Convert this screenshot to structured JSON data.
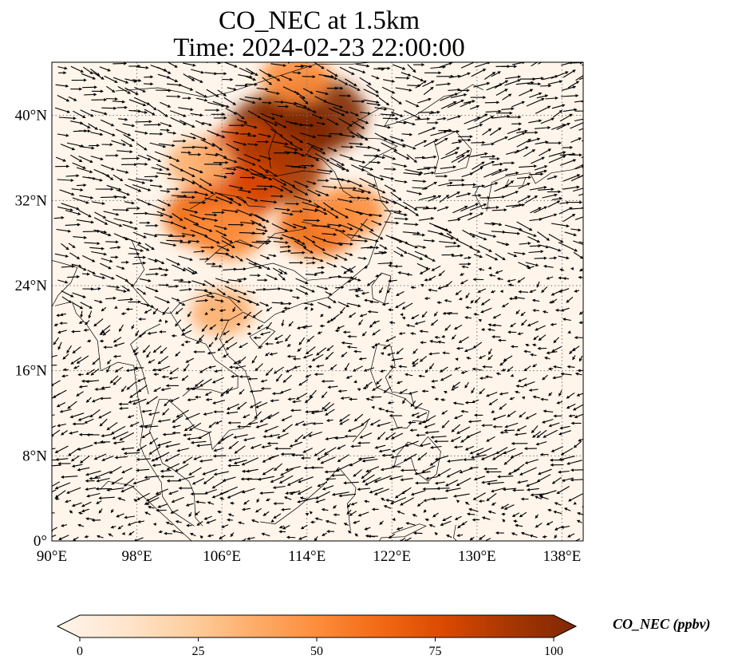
{
  "title": {
    "line1": "CO_NEC at 1.5km",
    "line2": "Time: 2024-02-23 22:00:00"
  },
  "map": {
    "lon_range": [
      90,
      140
    ],
    "lat_range": [
      0,
      45
    ],
    "lon_ticks": [
      {
        "value": 90,
        "label": "90°E"
      },
      {
        "value": 98,
        "label": "98°E"
      },
      {
        "value": 106,
        "label": "106°E"
      },
      {
        "value": 114,
        "label": "114°E"
      },
      {
        "value": 122,
        "label": "122°E"
      },
      {
        "value": 130,
        "label": "130°E"
      },
      {
        "value": 138,
        "label": "138°E"
      }
    ],
    "lat_ticks": [
      {
        "value": 0,
        "label": "0°"
      },
      {
        "value": 8,
        "label": "8°N"
      },
      {
        "value": 16,
        "label": "16°N"
      },
      {
        "value": 24,
        "label": "24°N"
      },
      {
        "value": 32,
        "label": "32°N"
      },
      {
        "value": 40,
        "label": "40°N"
      }
    ],
    "gridlines": true,
    "overlay": "wind-vectors"
  },
  "colorbar": {
    "label": "CO_NEC (ppbv)",
    "ticks": [
      {
        "value": 0,
        "label": "0"
      },
      {
        "value": 25,
        "label": "25"
      },
      {
        "value": 50,
        "label": "50"
      },
      {
        "value": 75,
        "label": "75"
      },
      {
        "value": 100,
        "label": "100"
      }
    ],
    "range": [
      0,
      100
    ],
    "colormap": [
      "#fff5eb",
      "#fee6ce",
      "#fdd0a2",
      "#fdae6b",
      "#fd8d3c",
      "#f16913",
      "#d94801",
      "#a63603",
      "#7f2704"
    ],
    "extend": "both"
  },
  "plumes": [
    {
      "lon": 111.5,
      "lat": 38.5,
      "value": 95
    },
    {
      "lon": 114.5,
      "lat": 40.0,
      "value": 100
    },
    {
      "lon": 108.5,
      "lat": 36.0,
      "value": 80
    },
    {
      "lon": 111.0,
      "lat": 35.0,
      "value": 85
    },
    {
      "lon": 107.5,
      "lat": 33.0,
      "value": 70
    },
    {
      "lon": 104.5,
      "lat": 30.5,
      "value": 65
    },
    {
      "lon": 106.5,
      "lat": 29.0,
      "value": 50
    },
    {
      "lon": 115.0,
      "lat": 29.5,
      "value": 60
    },
    {
      "lon": 118.0,
      "lat": 31.0,
      "value": 45
    },
    {
      "lon": 113.0,
      "lat": 43.5,
      "value": 45
    },
    {
      "lon": 106.0,
      "lat": 21.5,
      "value": 35
    },
    {
      "lon": 104.0,
      "lat": 35.5,
      "value": 40
    }
  ]
}
